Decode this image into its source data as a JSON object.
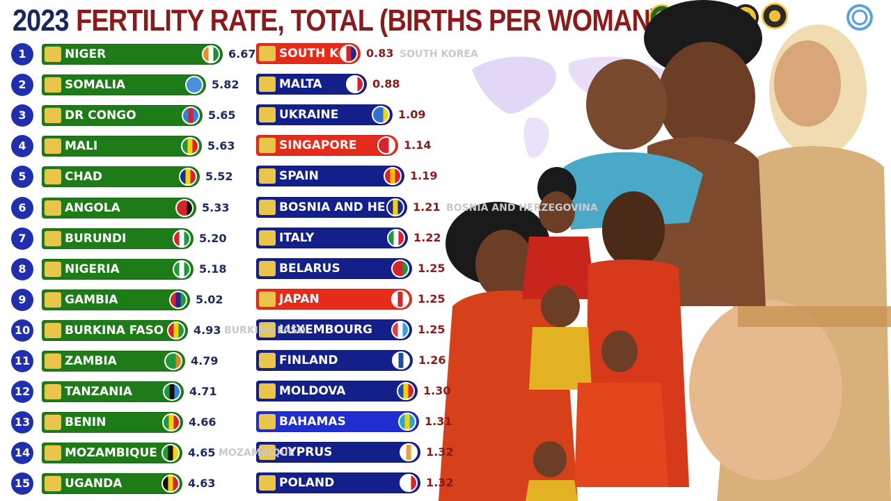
{
  "title": {
    "year": "2023",
    "main": "FERTILITY RATE, TOTAL (BIRTHS PER WOMAN)"
  },
  "colors": {
    "title_year": "#16285e",
    "title_main": "#8b1a1a",
    "rank_badge": "#1f2fae",
    "high_value_text": "#1b2a60",
    "low_value_text": "#8b1a1a",
    "green_bar": "#1e7c18",
    "navy_bar": "#14208a",
    "red_bar": "#e52b1a",
    "blue_bar": "#1e2ed0"
  },
  "chart_data": {
    "type": "bar",
    "title": "FERTILITY RATE, TOTAL (BIRTHS PER WOMAN)",
    "year": "2023",
    "xlim": [
      0,
      6.67
    ],
    "series": [
      {
        "group": "highest",
        "items": [
          {
            "rank": "1",
            "label": "NIGER",
            "value": 6.67,
            "value_text": "6.67",
            "color": "#1e7c18",
            "flag": [
              "#f08c24",
              "#ffffff",
              "#1f8a3c"
            ]
          },
          {
            "rank": "2",
            "label": "SOMALIA",
            "value": 5.82,
            "value_text": "5.82",
            "color": "#1e7c18",
            "flag": [
              "#4a8fdb",
              "#4a8fdb",
              "#4a8fdb"
            ]
          },
          {
            "rank": "3",
            "label": "DR CONGO",
            "value": 5.65,
            "value_text": "5.65",
            "color": "#1e7c18",
            "flag": [
              "#2f82e0",
              "#d8232a",
              "#2f82e0"
            ]
          },
          {
            "rank": "4",
            "label": "MALI",
            "value": 5.63,
            "value_text": "5.63",
            "color": "#1e7c18",
            "flag": [
              "#1e9a3c",
              "#f6d200",
              "#d8232a"
            ]
          },
          {
            "rank": "5",
            "label": "CHAD",
            "value": 5.52,
            "value_text": "5.52",
            "color": "#1e7c18",
            "flag": [
              "#1e2b8a",
              "#f6d200",
              "#d8232a"
            ]
          },
          {
            "rank": "6",
            "label": "ANGOLA",
            "value": 5.33,
            "value_text": "5.33",
            "color": "#1e7c18",
            "flag": [
              "#d8232a",
              "#d8232a",
              "#111111"
            ]
          },
          {
            "rank": "7",
            "label": "BURUNDI",
            "value": 5.2,
            "value_text": "5.20",
            "color": "#1e7c18",
            "flag": [
              "#d8232a",
              "#ffffff",
              "#1e9a3c"
            ]
          },
          {
            "rank": "8",
            "label": "NIGERIA",
            "value": 5.18,
            "value_text": "5.18",
            "color": "#1e7c18",
            "flag": [
              "#1e9a3c",
              "#ffffff",
              "#1e9a3c"
            ]
          },
          {
            "rank": "9",
            "label": "GAMBIA",
            "value": 5.02,
            "value_text": "5.02",
            "color": "#1e7c18",
            "flag": [
              "#d8232a",
              "#1e2b8a",
              "#1e9a3c"
            ]
          },
          {
            "rank": "10",
            "label": "BURKINA FASO",
            "value": 4.93,
            "value_text": "4.93",
            "color": "#1e7c18",
            "flag": [
              "#d8232a",
              "#f6d200",
              "#1e9a3c"
            ]
          },
          {
            "rank": "11",
            "label": "ZAMBIA",
            "value": 4.79,
            "value_text": "4.79",
            "color": "#1e7c18",
            "flag": [
              "#1e9a3c",
              "#1e9a3c",
              "#e8801c"
            ]
          },
          {
            "rank": "12",
            "label": "TANZANIA",
            "value": 4.71,
            "value_text": "4.71",
            "color": "#1e7c18",
            "flag": [
              "#1e9a3c",
              "#111111",
              "#2f82e0"
            ]
          },
          {
            "rank": "13",
            "label": "BENIN",
            "value": 4.66,
            "value_text": "4.66",
            "color": "#1e7c18",
            "flag": [
              "#1e9a3c",
              "#f6d200",
              "#d8232a"
            ]
          },
          {
            "rank": "14",
            "label": "MOZAMBIQUE",
            "value": 4.65,
            "value_text": "4.65",
            "color": "#1e7c18",
            "flag": [
              "#1e9a3c",
              "#111111",
              "#f6d200"
            ]
          },
          {
            "rank": "15",
            "label": "UGANDA",
            "value": 4.63,
            "value_text": "4.63",
            "color": "#1e7c18",
            "flag": [
              "#111111",
              "#f6d200",
              "#d8232a"
            ]
          }
        ]
      },
      {
        "group": "lowest",
        "items": [
          {
            "label": "SOUTH KOREA",
            "value": 0.83,
            "value_text": "0.83",
            "color": "#e52b1a",
            "flag": [
              "#ffffff",
              "#d8232a",
              "#1e2b8a"
            ]
          },
          {
            "label": "MALTA",
            "value": 0.88,
            "value_text": "0.88",
            "color": "#14208a",
            "flag": [
              "#ffffff",
              "#ffffff",
              "#d8232a"
            ]
          },
          {
            "label": "UKRAINE",
            "value": 1.09,
            "value_text": "1.09",
            "color": "#14208a",
            "flag": [
              "#2f6fd8",
              "#2f6fd8",
              "#f6d200"
            ]
          },
          {
            "label": "SINGAPORE",
            "value": 1.14,
            "value_text": "1.14",
            "color": "#e52b1a",
            "flag": [
              "#d8232a",
              "#d8232a",
              "#ffffff"
            ]
          },
          {
            "label": "SPAIN",
            "value": 1.19,
            "value_text": "1.19",
            "color": "#14208a",
            "flag": [
              "#d8232a",
              "#f6c200",
              "#d8232a"
            ]
          },
          {
            "label": "BOSNIA AND HERZEGOVINA",
            "value": 1.21,
            "value_text": "1.21",
            "color": "#14208a",
            "flag": [
              "#1e2b8a",
              "#f6d200",
              "#1e2b8a"
            ]
          },
          {
            "label": "ITALY",
            "value": 1.22,
            "value_text": "1.22",
            "color": "#14208a",
            "flag": [
              "#1e9a3c",
              "#ffffff",
              "#d8232a"
            ]
          },
          {
            "label": "BELARUS",
            "value": 1.25,
            "value_text": "1.25",
            "color": "#14208a",
            "flag": [
              "#d8232a",
              "#d8232a",
              "#1e9a3c"
            ]
          },
          {
            "label": "JAPAN",
            "value": 1.25,
            "value_text": "1.25",
            "color": "#e52b1a",
            "flag": [
              "#ffffff",
              "#d8232a",
              "#ffffff"
            ]
          },
          {
            "label": "LUXEMBOURG",
            "value": 1.25,
            "value_text": "1.25",
            "color": "#14208a",
            "flag": [
              "#e03a3a",
              "#ffffff",
              "#3aa0e0"
            ]
          },
          {
            "label": "FINLAND",
            "value": 1.26,
            "value_text": "1.26",
            "color": "#14208a",
            "flag": [
              "#ffffff",
              "#1e4fa8",
              "#ffffff"
            ]
          },
          {
            "label": "MOLDOVA",
            "value": 1.3,
            "value_text": "1.30",
            "color": "#14208a",
            "flag": [
              "#1e4fa8",
              "#f6d200",
              "#d8232a"
            ]
          },
          {
            "label": "BAHAMAS",
            "value": 1.31,
            "value_text": "1.31",
            "color": "#1e2ed0",
            "flag": [
              "#2aa6c8",
              "#f6d200",
              "#2aa6c8"
            ]
          },
          {
            "label": "CYPRUS",
            "value": 1.32,
            "value_text": "1.32",
            "color": "#14208a",
            "flag": [
              "#ffffff",
              "#e8a23a",
              "#ffffff"
            ]
          },
          {
            "label": "POLAND",
            "value": 1.32,
            "value_text": "1.32",
            "color": "#14208a",
            "flag": [
              "#ffffff",
              "#ffffff",
              "#d8232a"
            ]
          }
        ]
      }
    ],
    "ghost_labels": [
      {
        "text": "SOUTH KOREA",
        "group": "lowest",
        "row": 0
      },
      {
        "text": "BOSNIA AND HERZEGOVINA",
        "group": "lowest",
        "row": 5
      },
      {
        "text": "BURKINA FASO",
        "group": "highest",
        "row": 9
      },
      {
        "text": "MOZAMBIQUE",
        "group": "highest",
        "row": 13
      }
    ],
    "grid": false,
    "legend": "none"
  }
}
